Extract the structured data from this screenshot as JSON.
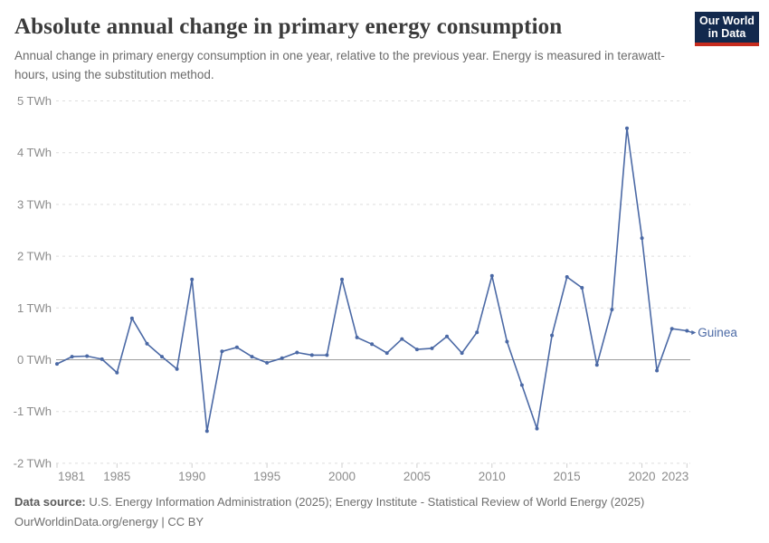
{
  "header": {
    "title": "Absolute annual change in primary energy consumption",
    "subtitle": "Annual change in primary energy consumption in one year, relative to the previous year. Energy is measured in terawatt-hours, using the substitution method.",
    "logo": {
      "line1": "Our World",
      "line2": "in Data"
    }
  },
  "chart_data": {
    "type": "line",
    "title": "Absolute annual change in primary energy consumption",
    "unit": "TWh",
    "x": [
      1981,
      1982,
      1983,
      1984,
      1985,
      1986,
      1987,
      1988,
      1989,
      1990,
      1991,
      1992,
      1993,
      1994,
      1995,
      1996,
      1997,
      1998,
      1999,
      2000,
      2001,
      2002,
      2003,
      2004,
      2005,
      2006,
      2007,
      2008,
      2009,
      2010,
      2011,
      2012,
      2013,
      2014,
      2015,
      2016,
      2017,
      2018,
      2019,
      2020,
      2021,
      2022,
      2023
    ],
    "series": [
      {
        "name": "Guinea",
        "values": [
          -0.08,
          0.06,
          0.07,
          0.01,
          -0.25,
          0.8,
          0.31,
          0.06,
          -0.18,
          1.55,
          -1.38,
          0.16,
          0.24,
          0.06,
          -0.06,
          0.03,
          0.14,
          0.09,
          0.09,
          1.55,
          0.43,
          0.3,
          0.13,
          0.4,
          0.2,
          0.22,
          0.45,
          0.13,
          0.53,
          1.62,
          0.35,
          -0.49,
          -1.33,
          0.47,
          1.6,
          1.39,
          -0.1,
          0.97,
          4.47,
          2.35,
          -0.21,
          0.6,
          0.56
        ]
      }
    ],
    "entity_label": "Guinea",
    "xlim": [
      1981,
      2023
    ],
    "ylim": [
      -2,
      5
    ],
    "grid": true,
    "legend_position": "right-of-line",
    "xticks": [
      1981,
      1985,
      1990,
      1995,
      2000,
      2005,
      2010,
      2015,
      2020,
      2023
    ],
    "yticks": [
      5,
      4,
      3,
      2,
      1,
      0,
      -1,
      -2
    ],
    "ytick_labels": [
      "5 TWh",
      "4 TWh",
      "3 TWh",
      "2 TWh",
      "1 TWh",
      "0 TWh",
      "-1 TWh",
      "-2 TWh"
    ],
    "line_color": "#4b69a5",
    "grid_color": "#dedede",
    "zero_line_color": "#9e9e9e",
    "axis_label_color": "#8c8c8c"
  },
  "footer": {
    "datasource_label": "Data source:",
    "datasource_text": " U.S. Energy Information Administration (2025); Energy Institute - Statistical Review of World Energy (2025)",
    "license_line": "OurWorldinData.org/energy | CC BY"
  }
}
